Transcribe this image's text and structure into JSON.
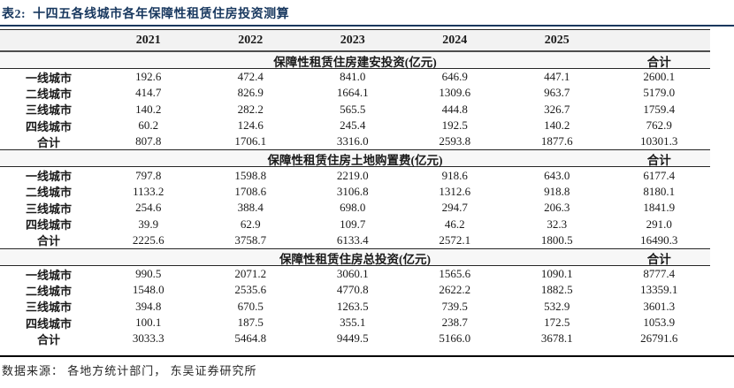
{
  "title": "表2:  十四五各线城市各年保障性租赁住房投资测算",
  "header": {
    "years": [
      "2021",
      "2022",
      "2023",
      "2024",
      "2025"
    ]
  },
  "sections": [
    {
      "title": "保障性租赁住房建安投资(亿元)",
      "total_label": "合计",
      "rows": [
        [
          "一线城市",
          "192.6",
          "472.4",
          "841.0",
          "646.9",
          "447.1",
          "2600.1"
        ],
        [
          "二线城市",
          "414.7",
          "826.9",
          "1664.1",
          "1309.6",
          "963.7",
          "5179.0"
        ],
        [
          "三线城市",
          "140.2",
          "282.2",
          "565.5",
          "444.8",
          "326.7",
          "1759.4"
        ],
        [
          "四线城市",
          "60.2",
          "124.6",
          "245.4",
          "192.5",
          "140.2",
          "762.9"
        ],
        [
          "合计",
          "807.8",
          "1706.1",
          "3316.0",
          "2593.8",
          "1877.6",
          "10301.3"
        ]
      ]
    },
    {
      "title": "保障性租赁住房土地购置费(亿元)",
      "total_label": "合计",
      "rows": [
        [
          "一线城市",
          "797.8",
          "1598.8",
          "2219.0",
          "918.6",
          "643.0",
          "6177.4"
        ],
        [
          "二线城市",
          "1133.2",
          "1708.6",
          "3106.8",
          "1312.6",
          "918.8",
          "8180.1"
        ],
        [
          "三线城市",
          "254.6",
          "388.4",
          "698.0",
          "294.7",
          "206.3",
          "1841.9"
        ],
        [
          "四线城市",
          "39.9",
          "62.9",
          "109.7",
          "46.2",
          "32.3",
          "291.0"
        ],
        [
          "合计",
          "2225.6",
          "3758.7",
          "6133.4",
          "2572.1",
          "1800.5",
          "16490.3"
        ]
      ]
    },
    {
      "title": "保障性租赁住房总投资(亿元)",
      "total_label": "合计",
      "rows": [
        [
          "一线城市",
          "990.5",
          "2071.2",
          "3060.1",
          "1565.6",
          "1090.1",
          "8777.4"
        ],
        [
          "二线城市",
          "1548.0",
          "2535.6",
          "4770.8",
          "2622.2",
          "1882.5",
          "13359.1"
        ],
        [
          "三线城市",
          "394.8",
          "670.5",
          "1263.5",
          "739.5",
          "532.9",
          "3601.3"
        ],
        [
          "四线城市",
          "100.1",
          "187.5",
          "355.1",
          "238.7",
          "172.5",
          "1053.9"
        ],
        [
          "合计",
          "3033.3",
          "5464.8",
          "9449.5",
          "5166.0",
          "3678.1",
          "26791.6"
        ]
      ]
    }
  ],
  "footer": "数据来源： 各地方统计部门， 东吴证券研究所",
  "colors": {
    "accent": "#17375E"
  }
}
